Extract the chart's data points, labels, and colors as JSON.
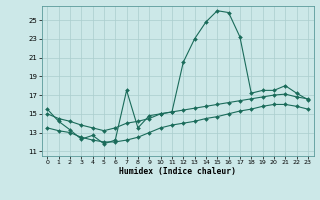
{
  "xlabel": "Humidex (Indice chaleur)",
  "bg_color": "#cce8e8",
  "grid_color": "#aacece",
  "line_color": "#1a6b5a",
  "xlim": [
    -0.5,
    23.5
  ],
  "ylim": [
    10.5,
    26.5
  ],
  "yticks": [
    11,
    13,
    15,
    17,
    19,
    21,
    23,
    25
  ],
  "xticks": [
    0,
    1,
    2,
    3,
    4,
    5,
    6,
    7,
    8,
    9,
    10,
    11,
    12,
    13,
    14,
    15,
    16,
    17,
    18,
    19,
    20,
    21,
    22,
    23
  ],
  "series1_x": [
    0,
    1,
    2,
    3,
    4,
    5,
    6,
    7,
    8,
    9,
    10,
    11,
    12,
    13,
    14,
    15,
    16,
    17,
    18,
    19,
    20,
    21,
    22,
    23
  ],
  "series1_y": [
    15.5,
    14.2,
    13.3,
    12.3,
    12.7,
    11.8,
    12.2,
    17.5,
    13.5,
    14.8,
    15.0,
    15.2,
    20.5,
    23.0,
    24.8,
    26.0,
    25.8,
    23.2,
    17.2,
    17.5,
    17.5,
    18.0,
    17.2,
    16.5
  ],
  "series2_x": [
    0,
    1,
    2,
    3,
    4,
    5,
    6,
    7,
    8,
    9,
    10,
    11,
    12,
    13,
    14,
    15,
    16,
    17,
    18,
    19,
    20,
    21,
    22,
    23
  ],
  "series2_y": [
    15.0,
    14.5,
    14.2,
    13.8,
    13.5,
    13.2,
    13.5,
    14.0,
    14.2,
    14.5,
    15.0,
    15.2,
    15.4,
    15.6,
    15.8,
    16.0,
    16.2,
    16.4,
    16.6,
    16.8,
    17.0,
    17.1,
    16.8,
    16.6
  ],
  "series3_x": [
    0,
    1,
    2,
    3,
    4,
    5,
    6,
    7,
    8,
    9,
    10,
    11,
    12,
    13,
    14,
    15,
    16,
    17,
    18,
    19,
    20,
    21,
    22,
    23
  ],
  "series3_y": [
    13.5,
    13.2,
    13.0,
    12.5,
    12.2,
    12.0,
    12.0,
    12.2,
    12.5,
    13.0,
    13.5,
    13.8,
    14.0,
    14.2,
    14.5,
    14.7,
    15.0,
    15.3,
    15.5,
    15.8,
    16.0,
    16.0,
    15.8,
    15.5
  ]
}
